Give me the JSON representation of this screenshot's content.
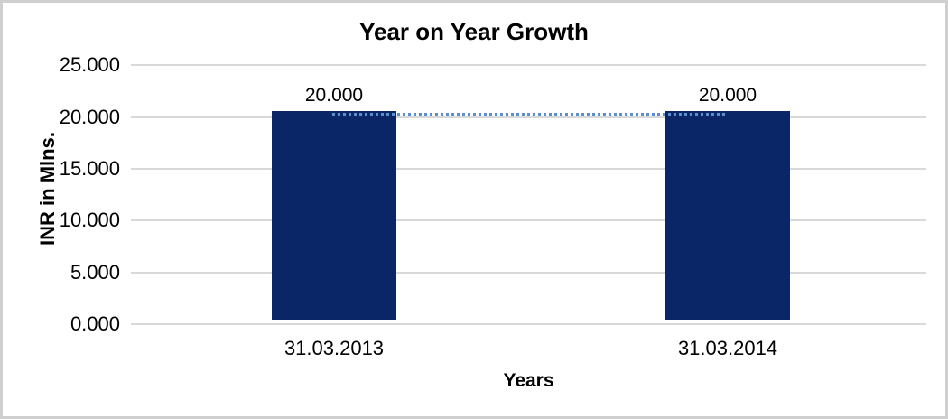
{
  "chart_data": {
    "type": "bar",
    "title": "Year on Year Growth",
    "xlabel": "Years",
    "ylabel": "INR in Mlns.",
    "categories": [
      "31.03.2013",
      "31.03.2014"
    ],
    "values": [
      20.0,
      20.0
    ],
    "data_labels": [
      "20.000",
      "20.000"
    ],
    "yticks": [
      "25.000",
      "20.000",
      "15.000",
      "10.000",
      "5.000",
      "0.000"
    ],
    "ylim": [
      0,
      25
    ],
    "ytick_step": 5,
    "grid": "horizontal",
    "legend": "none",
    "trendline": {
      "style": "dotted",
      "from": 20.0,
      "to": 20.0
    },
    "colors": {
      "bar": "#0a2666",
      "trendline": "#5b8fd0",
      "gridline": "#d9d9d9",
      "frame": "#cfcfcf",
      "text": "#000000",
      "background": "#ffffff"
    }
  }
}
